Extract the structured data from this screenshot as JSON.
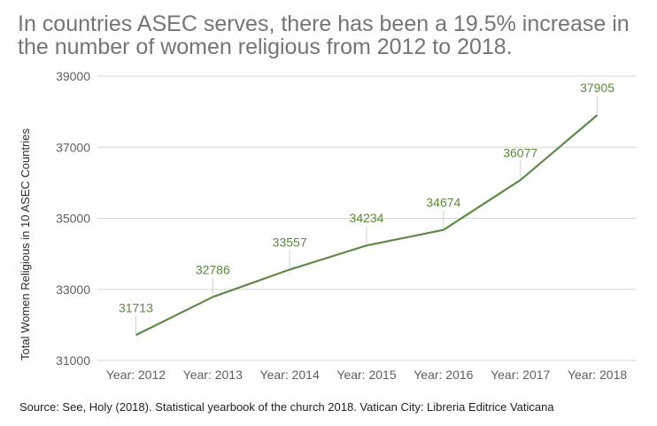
{
  "chart_data": {
    "type": "line",
    "title": "In countries ASEC serves, there has been a 19.5% increase in the number of women religious from 2012 to 2018.",
    "xlabel": "",
    "ylabel": "Total Women Religious in 10 ASEC Countries",
    "categories": [
      "Year: 2012",
      "Year: 2013",
      "Year: 2014",
      "Year: 2015",
      "Year: 2016",
      "Year: 2017",
      "Year: 2018"
    ],
    "series": [
      {
        "name": "Total Women Religious",
        "values": [
          31713,
          32786,
          33557,
          34234,
          34674,
          36077,
          37905
        ]
      }
    ],
    "ylim": [
      31000,
      39000
    ],
    "yticks": [
      31000,
      33000,
      35000,
      37000,
      39000
    ],
    "grid": true,
    "line_color": "#5e8a48",
    "source": "Source: See, Holy (2018). Statistical yearbook of the church 2018. Vatican City: Libreria Editrice Vaticana"
  }
}
